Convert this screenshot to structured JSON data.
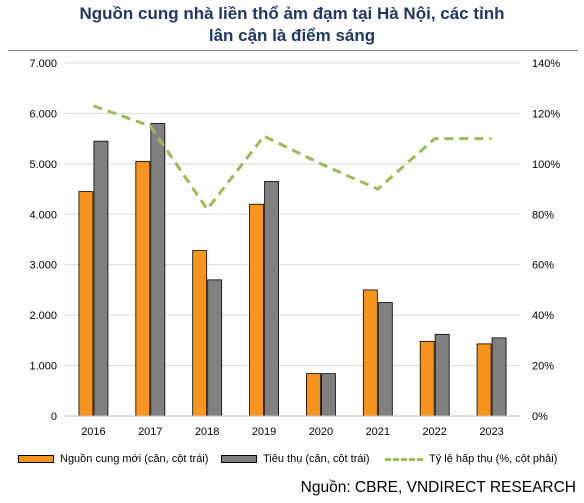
{
  "title_line1": "Nguồn cung nhà liền thổ ảm đạm tại Hà Nội, các tỉnh",
  "title_line2": "lân cận là điểm sáng",
  "source": "Nguồn: CBRE, VNDIRECT RESEARCH",
  "colors": {
    "supply": "#f7941d",
    "sales": "#808080",
    "absorption": "#9bbb59",
    "grid": "#d9d9d9"
  },
  "chart_data": {
    "type": "bar",
    "categories": [
      "2016",
      "2017",
      "2018",
      "2019",
      "2020",
      "2021",
      "2022",
      "2023"
    ],
    "series": [
      {
        "name": "Nguồn cung mới (căn, cột trái)",
        "type": "bar",
        "axis": "left",
        "values": [
          4450,
          5050,
          3280,
          4200,
          840,
          2500,
          1480,
          1430
        ]
      },
      {
        "name": "Tiêu thụ (căn, cột trái)",
        "type": "bar",
        "axis": "left",
        "values": [
          5450,
          5800,
          2700,
          4650,
          840,
          2250,
          1620,
          1550
        ]
      },
      {
        "name": "Tỷ lệ hấp thụ (%, cột phải)",
        "type": "line",
        "style": "dashed",
        "axis": "right",
        "values": [
          123,
          115,
          82,
          111,
          100,
          90,
          110,
          110
        ]
      }
    ],
    "left_axis": {
      "ylim": [
        0,
        7000
      ],
      "ticks": [
        "0",
        "1.000",
        "2.000",
        "3.000",
        "4.000",
        "5.000",
        "6.000",
        "7.000"
      ]
    },
    "right_axis": {
      "ylim": [
        0,
        140
      ],
      "ticks": [
        "0%",
        "20%",
        "40%",
        "60%",
        "80%",
        "100%",
        "120%",
        "140%"
      ]
    },
    "grid": true,
    "legend_position": "bottom"
  }
}
